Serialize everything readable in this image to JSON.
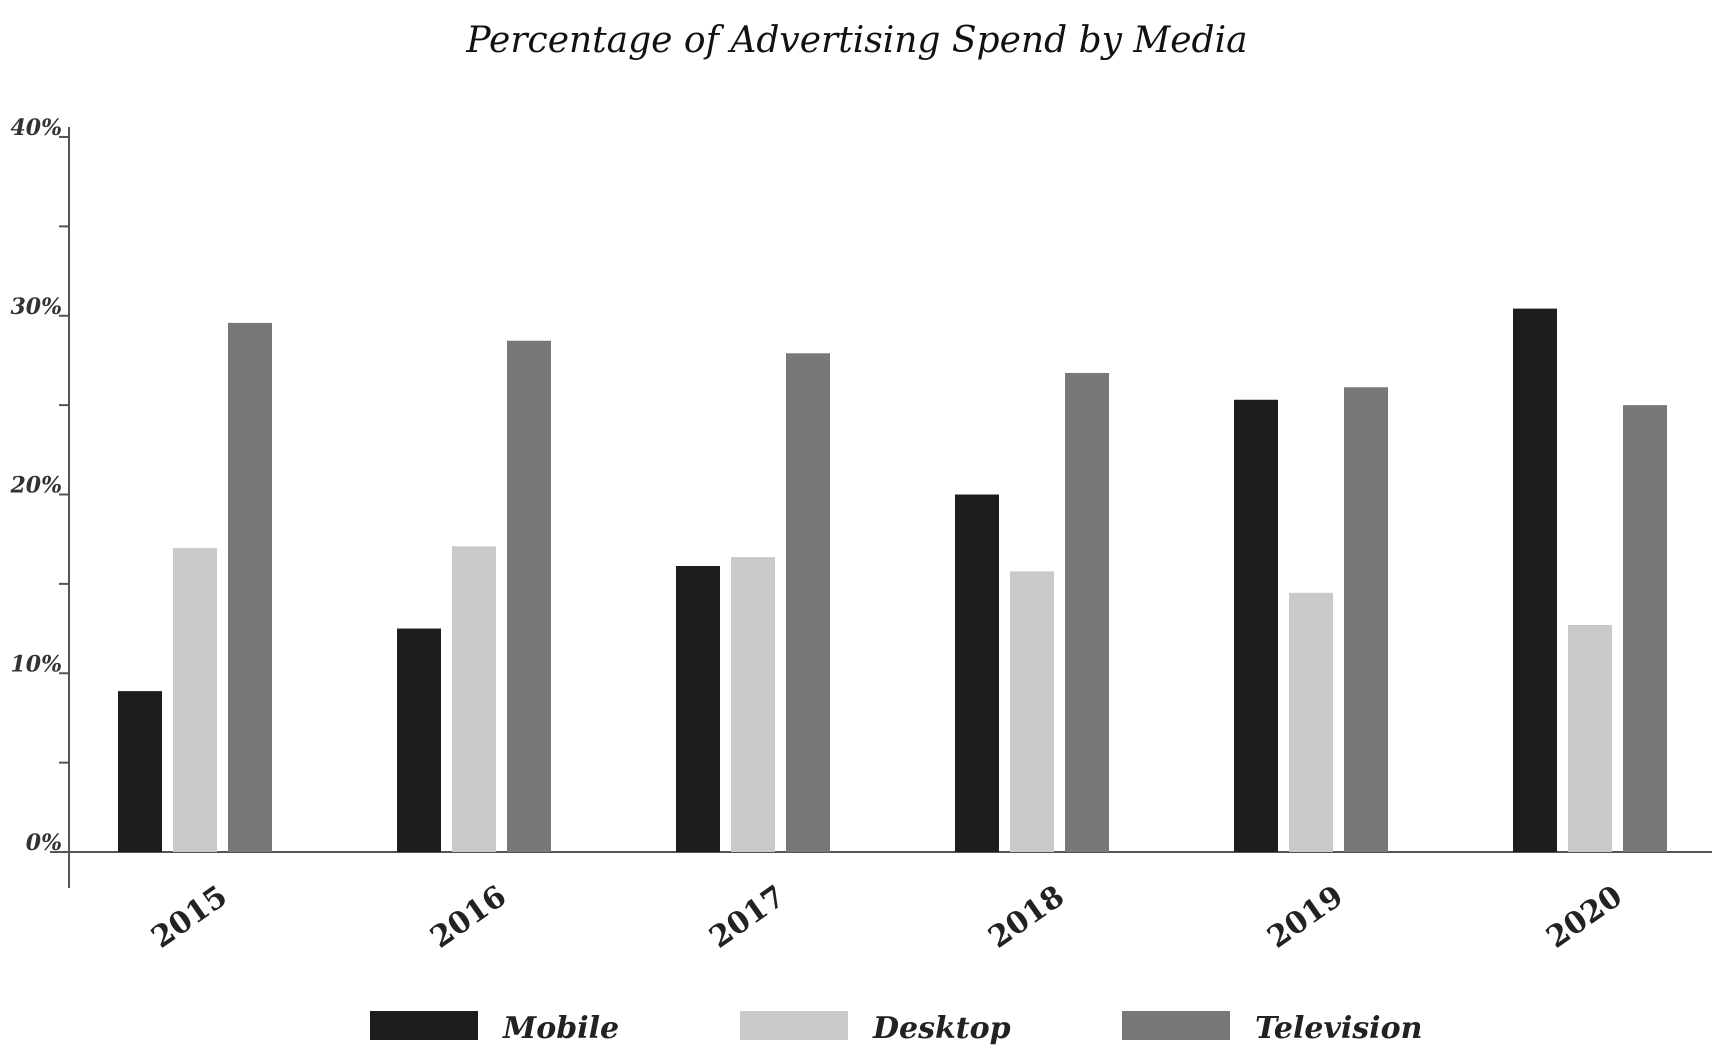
{
  "chart_data": {
    "type": "bar",
    "title": "Percentage of Advertising Spend by Media",
    "xlabel": "",
    "ylabel": "",
    "categories": [
      "2015",
      "2016",
      "2017",
      "2018",
      "2019",
      "2020"
    ],
    "series": [
      {
        "name": "Mobile",
        "color": "#1e1c1d",
        "values": [
          9,
          12.5,
          16,
          20,
          25.3,
          30.4
        ]
      },
      {
        "name": "Desktop",
        "color": "#c8c9ca",
        "values": [
          17,
          17.1,
          16.5,
          15.7,
          14.5,
          12.7
        ]
      },
      {
        "name": "Television",
        "color": "#777879",
        "values": [
          29.6,
          28.6,
          27.9,
          26.8,
          26,
          25
        ]
      }
    ],
    "ylim": [
      0,
      40
    ],
    "yticks": [
      0,
      10,
      20,
      30,
      40
    ],
    "ytick_labels": [
      "0%",
      "10%",
      "20%",
      "30%",
      "40%"
    ],
    "y_minor_step": 5,
    "grid": false,
    "legend_position": "bottom"
  }
}
